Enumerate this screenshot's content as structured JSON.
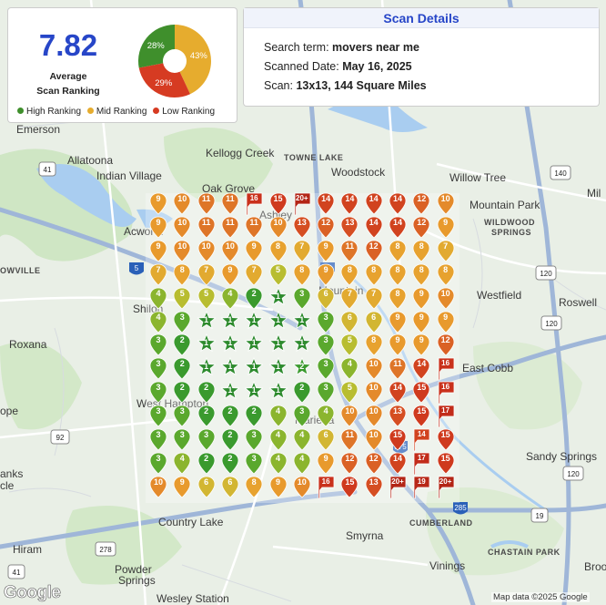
{
  "summary": {
    "score": "7.82",
    "score_label_line1": "Average",
    "score_label_line2": "Scan Ranking",
    "donut": [
      {
        "label": "28%",
        "percent": 28,
        "color": "#3f8f2c"
      },
      {
        "label": "43%",
        "percent": 43,
        "color": "#e6ac2e"
      },
      {
        "label": "29%",
        "percent": 29,
        "color": "#d63b22"
      }
    ],
    "legend": [
      {
        "label": "High Ranking",
        "color": "#3f8f2c"
      },
      {
        "label": "Mid Ranking",
        "color": "#e6ac2e"
      },
      {
        "label": "Low Ranking",
        "color": "#d63b22"
      }
    ]
  },
  "details": {
    "title": "Scan Details",
    "search_label": "Search term:",
    "search_value": "movers near me",
    "date_label": "Scanned Date:",
    "date_value": "May 16, 2025",
    "scan_label": "Scan:",
    "scan_value": "13x13, 144 Square Miles"
  },
  "map": {
    "labels": [
      "Emerson",
      "Allatoona",
      "Indian Village",
      "Kellogg Creek",
      "TOWNE LAKE",
      "Woodstock",
      "Willow Tree",
      "Mountain Park",
      "WILDWOOD",
      "SPRINGS",
      "Mil",
      "Oak Grove",
      "Ashley",
      "Acworth",
      "OWVILLE",
      "Shiloh",
      "Westfield",
      "Roswell",
      "Roxana",
      "Mountain",
      "East Cobb",
      "West Hampton",
      "Marietta",
      "ope",
      "Sandy Springs",
      "Country Lake",
      "Smyrna",
      "CUMBERLAND",
      "anks",
      "cle",
      "Hiram",
      "Powder",
      "Springs",
      "Wesley Station",
      "Vinings",
      "CHASTAIN PARK",
      "Broo"
    ],
    "shields": [
      "140",
      "92",
      "41",
      "120",
      "75",
      "75",
      "575",
      "278",
      "285",
      "19",
      "41",
      "5",
      "120",
      "120"
    ],
    "attribution": "Map data ©2025 Google",
    "logo": "Google"
  },
  "grid": {
    "rows": [
      [
        "9",
        "10",
        "11",
        "11",
        "16",
        "15",
        "20+",
        "14",
        "14",
        "14",
        "14",
        "12",
        "10"
      ],
      [
        "9",
        "10",
        "11",
        "11",
        "11",
        "10",
        "13",
        "12",
        "13",
        "14",
        "14",
        "12",
        "9"
      ],
      [
        "9",
        "10",
        "10",
        "10",
        "9",
        "8",
        "7",
        "9",
        "11",
        "12",
        "8",
        "8",
        "7"
      ],
      [
        "7",
        "8",
        "7",
        "9",
        "7",
        "5",
        "8",
        "9",
        "8",
        "8",
        "8",
        "8",
        "8"
      ],
      [
        "4",
        "5",
        "5",
        "4",
        "2",
        "1",
        "3",
        "6",
        "7",
        "7",
        "8",
        "9",
        "10"
      ],
      [
        "4",
        "3",
        "1",
        "1",
        "1",
        "1",
        "1",
        "3",
        "6",
        "6",
        "9",
        "9",
        "9"
      ],
      [
        "3",
        "2",
        "1",
        "1",
        "1",
        "1",
        "1",
        "3",
        "5",
        "8",
        "9",
        "9",
        "12"
      ],
      [
        "3",
        "2",
        "1",
        "1",
        "1",
        "1",
        "2",
        "3",
        "4",
        "10",
        "11",
        "14",
        "16"
      ],
      [
        "3",
        "2",
        "2",
        "1",
        "1",
        "1",
        "2",
        "3",
        "5",
        "10",
        "14",
        "15",
        "16"
      ],
      [
        "3",
        "3",
        "2",
        "2",
        "2",
        "4",
        "3",
        "4",
        "10",
        "10",
        "13",
        "15",
        "17"
      ],
      [
        "3",
        "3",
        "3",
        "2",
        "3",
        "4",
        "4",
        "6",
        "11",
        "10",
        "15",
        "14",
        "15"
      ],
      [
        "3",
        "4",
        "2",
        "2",
        "3",
        "4",
        "4",
        "9",
        "12",
        "12",
        "14",
        "17",
        "15"
      ],
      [
        "10",
        "9",
        "6",
        "6",
        "8",
        "9",
        "10",
        "16",
        "15",
        "13",
        "20+",
        "19",
        "20+"
      ]
    ],
    "star_positions": [
      [
        4,
        5
      ],
      [
        5,
        2
      ],
      [
        5,
        3
      ],
      [
        5,
        4
      ],
      [
        5,
        5
      ],
      [
        5,
        6
      ],
      [
        6,
        2
      ],
      [
        6,
        3
      ],
      [
        6,
        4
      ],
      [
        6,
        5
      ],
      [
        6,
        6
      ],
      [
        7,
        2
      ],
      [
        7,
        3
      ],
      [
        7,
        4
      ],
      [
        7,
        5
      ],
      [
        7,
        6
      ],
      [
        8,
        3
      ],
      [
        8,
        4
      ],
      [
        8,
        5
      ]
    ],
    "flag_positions": [
      [
        0,
        4
      ],
      [
        0,
        6
      ],
      [
        7,
        12
      ],
      [
        8,
        12
      ],
      [
        9,
        12
      ],
      [
        10,
        11
      ],
      [
        11,
        11
      ],
      [
        12,
        7
      ],
      [
        12,
        10
      ],
      [
        12,
        11
      ],
      [
        12,
        12
      ]
    ],
    "colors": {
      "1": "#2e8b2e",
      "2": "#3a9a2e",
      "3": "#5aa82d",
      "4": "#8bb52e",
      "5": "#b8bd30",
      "6": "#d2b632",
      "7": "#e2aa30",
      "8": "#e7a22f",
      "9": "#e89a2d",
      "10": "#e48a2b",
      "11": "#de7528",
      "12": "#da6125",
      "13": "#d54e22",
      "14": "#d1431f",
      "15": "#cf3a1e",
      "16": "#c9311c",
      "17": "#c22c1a",
      "19": "#b82818",
      "20+": "#b32516"
    }
  }
}
